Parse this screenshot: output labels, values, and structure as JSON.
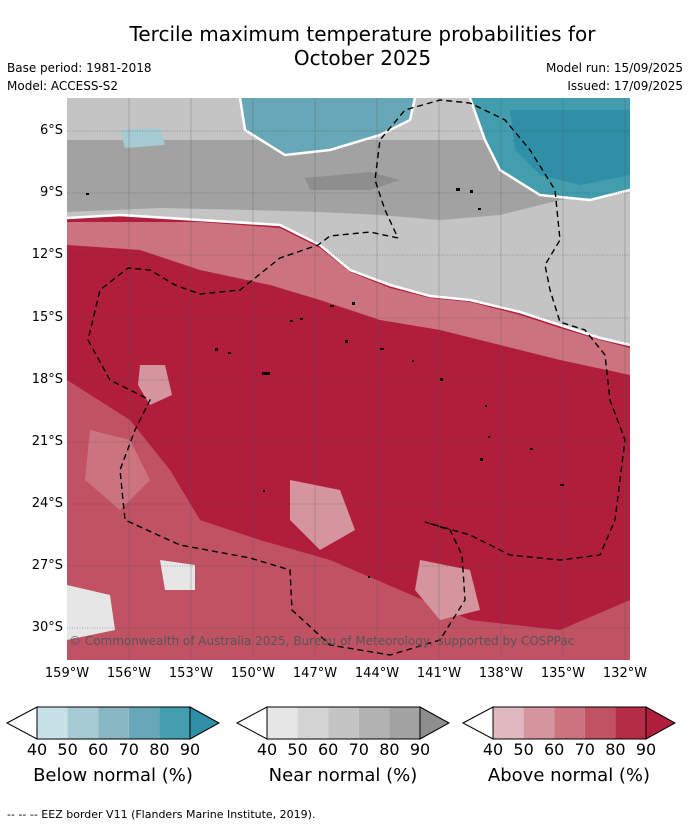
{
  "title_line1": "Tercile maximum temperature probabilities for",
  "title_line2": "October 2025",
  "base_period": "Base period: 1981-2018",
  "model": "Model: ACCESS-S2",
  "model_run": "Model run: 15/09/2025",
  "issued": "Issued: 17/09/2025",
  "lat_labels": [
    "6°S",
    "9°S",
    "12°S",
    "15°S",
    "18°S",
    "21°S",
    "24°S",
    "27°S",
    "30°S"
  ],
  "lon_labels": [
    "159°W",
    "156°W",
    "153°W",
    "150°W",
    "147°W",
    "144°W",
    "141°W",
    "138°W",
    "135°W",
    "132°W"
  ],
  "copyright": "© Commonwealth of Australia 2025, Bureau of Meteorology, supported by COSPPac",
  "legends": [
    {
      "title": "Below normal (%)",
      "ticks": [
        "40",
        "50",
        "60",
        "70",
        "80",
        "90"
      ],
      "colors": [
        "#c8e1e8",
        "#a6cad2",
        "#88b6c1",
        "#68a7b7",
        "#429eaf",
        "#2f8fa6"
      ]
    },
    {
      "title": "Near normal (%)",
      "ticks": [
        "40",
        "50",
        "60",
        "70",
        "80",
        "90"
      ],
      "colors": [
        "#e6e6e6",
        "#d4d4d4",
        "#c4c4c4",
        "#b2b2b2",
        "#a2a2a2",
        "#8e8e8e"
      ]
    },
    {
      "title": "Above normal (%)",
      "ticks": [
        "40",
        "50",
        "60",
        "70",
        "80",
        "90"
      ],
      "colors": [
        "#e0b8bf",
        "#d5959e",
        "#cb737f",
        "#c05264",
        "#b52d44",
        "#b01e3c"
      ]
    }
  ],
  "footnote": "--  --  -- EEZ border V11 (Flanders Marine Institute, 2019)."
}
